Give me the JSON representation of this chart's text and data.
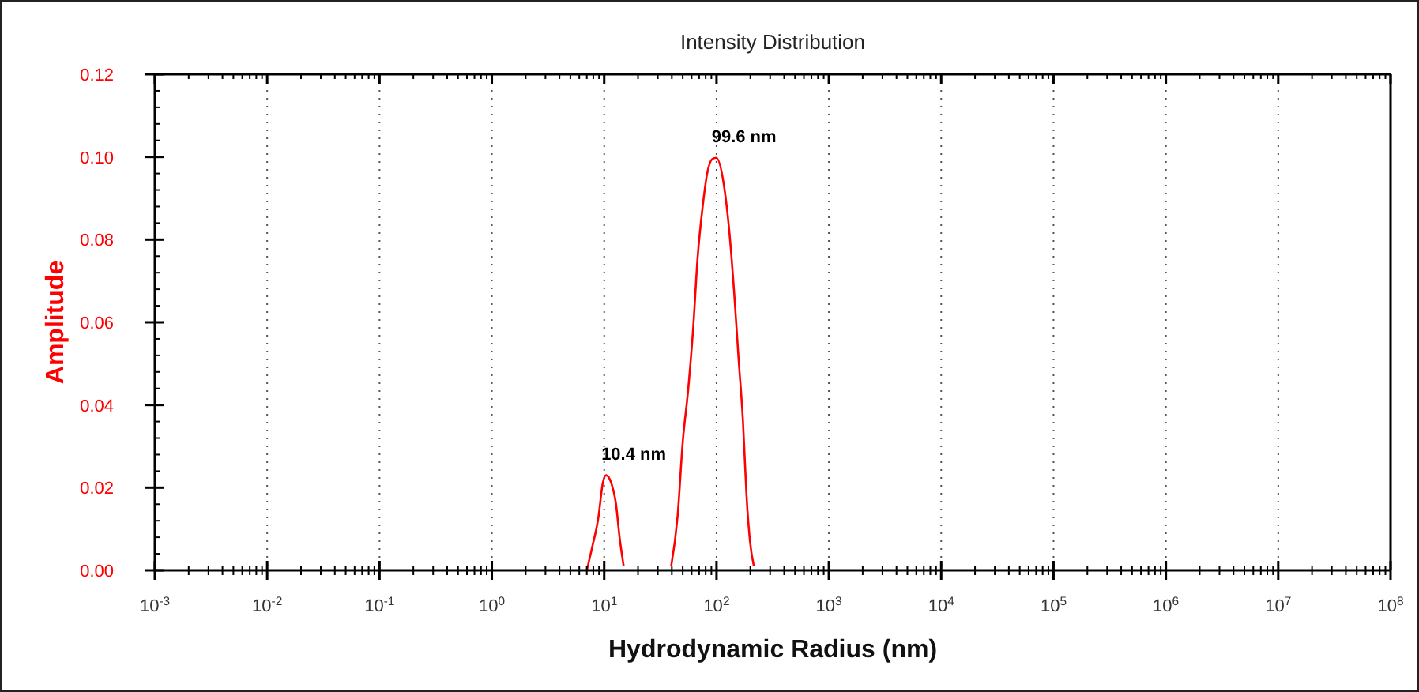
{
  "chart_data": {
    "type": "line",
    "title": "Intensity Distribution",
    "xlabel": "Hydrodynamic Radius (nm)",
    "ylabel": "Amplitude",
    "log": "x",
    "grid": "x",
    "marker": "none",
    "line_style": "solid",
    "xlim": [
      0.001,
      100000000
    ],
    "xticks": [
      {
        "value": 0.001,
        "label": "10$^{-3}$"
      },
      {
        "value": 0.01,
        "label": "10$^{-2}$"
      },
      {
        "value": 0.1,
        "label": "10$^{-1}$"
      },
      {
        "value": 1,
        "label": "10$^{0}$"
      },
      {
        "value": 10,
        "label": "10$^{1}$"
      },
      {
        "value": 100,
        "label": "10$^{2}$"
      },
      {
        "value": 1000,
        "label": "10$^{3}$"
      },
      {
        "value": 10000,
        "label": "10$^{4}$"
      },
      {
        "value": 100000,
        "label": "10$^{5}$"
      },
      {
        "value": 1000000,
        "label": "10$^{6}$"
      },
      {
        "value": 10000000,
        "label": "10$^{7}$"
      },
      {
        "value": 100000000,
        "label": "10$^{8}$"
      }
    ],
    "ylim": [
      0,
      0.12
    ],
    "yticks": [
      {
        "value": 0,
        "label": "0.00"
      },
      {
        "value": 0.02,
        "label": "0.02"
      },
      {
        "value": 0.04,
        "label": "0.04"
      },
      {
        "value": 0.06,
        "label": "0.06"
      },
      {
        "value": 0.08,
        "label": "0.08"
      },
      {
        "value": 0.1,
        "label": "0.10"
      },
      {
        "value": 0.12,
        "label": "0.12"
      }
    ],
    "series": [
      {
        "color": "#ff0000",
        "x": [
          7.0,
          7.8,
          8.9,
          9.7,
          10.4,
          11.6,
          12.7,
          13.7,
          14.9,
          25,
          39.5,
          45,
          50,
          55.9,
          62.1,
          67.8,
          75.5,
          82.4,
          91.6,
          99.6,
          116,
          130,
          144,
          157,
          172,
          185,
          199,
          215
        ],
        "values": [
          0,
          0.0055,
          0.013,
          0.021,
          0.023,
          0.021,
          0.0163,
          0.008,
          0.001,
          null,
          0.001,
          0.013,
          0.031,
          0.0437,
          0.059,
          0.0755,
          0.0883,
          0.0959,
          0.0995,
          0.0998,
          0.0934,
          0.0819,
          0.0666,
          0.0513,
          0.036,
          0.018,
          0.0068,
          0.001
        ]
      }
    ],
    "annotations": [
      {
        "text": "10.4 nm",
        "x": 10.4,
        "y": 0.023
      },
      {
        "text": "99.6 nm",
        "x": 99.6,
        "y": 0.0998
      }
    ]
  }
}
